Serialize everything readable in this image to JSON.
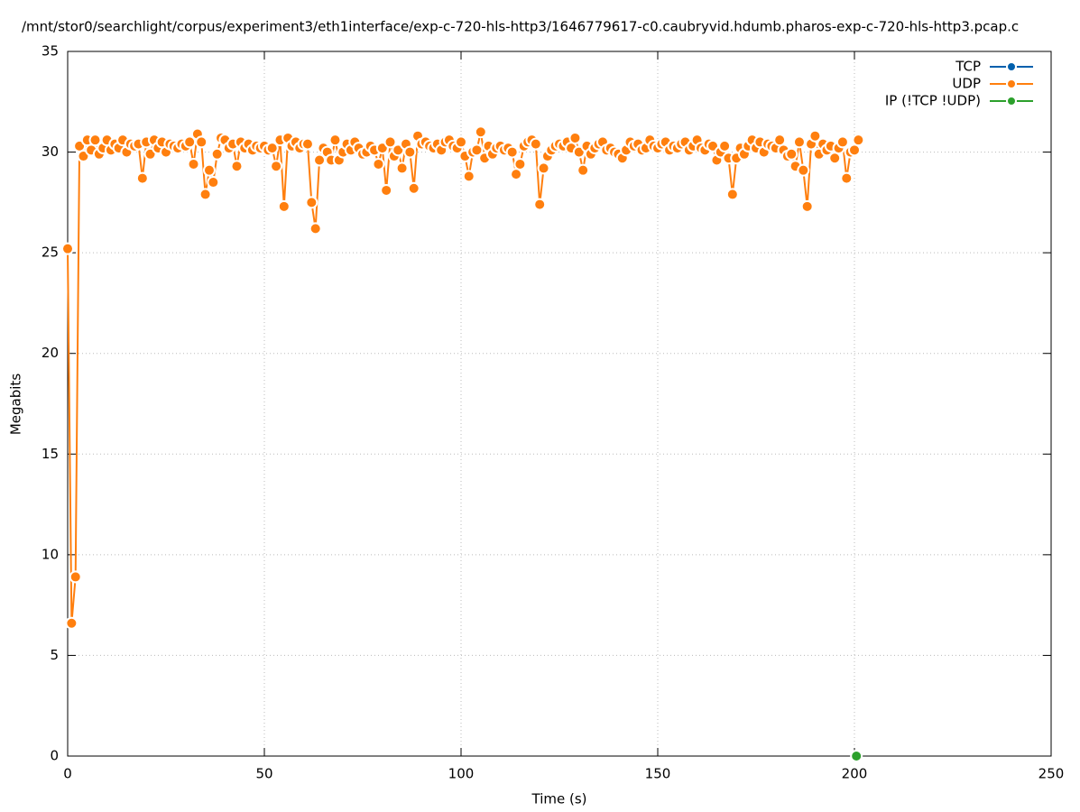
{
  "chart_data": {
    "type": "linespoints",
    "title": "/mnt/stor0/searchlight/corpus/experiment3/eth1interface/exp-c-720-hls-http3/1646779617-c0.caubryvid.hdumb.pharos-exp-c-720-hls-http3.pcap.c",
    "x_label": "Time (s)",
    "y_label": "Megabits",
    "xlim": [
      0,
      250
    ],
    "xticks": [
      0,
      50,
      100,
      150,
      200,
      250
    ],
    "ylim": [
      0,
      35
    ],
    "yticks": [
      0,
      5,
      10,
      15,
      20,
      25,
      30,
      35
    ],
    "grid": true,
    "legend": "top-right",
    "series": [
      {
        "name": "TCP",
        "color": "#0060ad",
        "x": [],
        "values": []
      },
      {
        "name": "UDP",
        "color": "#ff7f0e",
        "x": [
          0,
          1,
          2,
          3,
          4,
          5,
          6,
          7,
          8,
          9,
          10,
          11,
          12,
          13,
          14,
          15,
          16,
          17,
          18,
          19,
          20,
          21,
          22,
          23,
          24,
          25,
          26,
          27,
          28,
          29,
          30,
          31,
          32,
          33,
          34,
          35,
          36,
          37,
          38,
          39,
          40,
          41,
          42,
          43,
          44,
          45,
          46,
          47,
          48,
          49,
          50,
          51,
          52,
          53,
          54,
          55,
          56,
          57,
          58,
          59,
          60,
          61,
          62,
          63,
          64,
          65,
          66,
          67,
          68,
          69,
          70,
          71,
          72,
          73,
          74,
          75,
          76,
          77,
          78,
          79,
          80,
          81,
          82,
          83,
          84,
          85,
          86,
          87,
          88,
          89,
          90,
          91,
          92,
          93,
          94,
          95,
          96,
          97,
          98,
          99,
          100,
          101,
          102,
          103,
          104,
          105,
          106,
          107,
          108,
          109,
          110,
          111,
          112,
          113,
          114,
          115,
          116,
          117,
          118,
          119,
          120,
          121,
          122,
          123,
          124,
          125,
          126,
          127,
          128,
          129,
          130,
          131,
          132,
          133,
          134,
          135,
          136,
          137,
          138,
          139,
          140,
          141,
          142,
          143,
          144,
          145,
          146,
          147,
          148,
          149,
          150,
          151,
          152,
          153,
          154,
          155,
          156,
          157,
          158,
          159,
          160,
          161,
          162,
          163,
          164,
          165,
          166,
          167,
          168,
          169,
          170,
          171,
          172,
          173,
          174,
          175,
          176,
          177,
          178,
          179,
          180,
          181,
          182,
          183,
          184,
          185,
          186,
          187,
          188,
          189,
          190,
          191,
          192,
          193,
          194,
          195,
          196,
          197,
          198,
          199,
          200,
          201
        ],
        "values": [
          25.2,
          6.6,
          8.9,
          30.3,
          29.8,
          30.6,
          30.1,
          30.6,
          29.9,
          30.2,
          30.6,
          30.1,
          30.4,
          30.2,
          30.6,
          30.0,
          30.4,
          30.3,
          30.4,
          28.7,
          30.5,
          29.9,
          30.6,
          30.2,
          30.5,
          30.0,
          30.4,
          30.3,
          30.2,
          30.4,
          30.3,
          30.5,
          29.4,
          30.9,
          30.5,
          27.9,
          29.1,
          28.5,
          29.9,
          30.7,
          30.6,
          30.2,
          30.4,
          29.3,
          30.5,
          30.2,
          30.4,
          30.1,
          30.3,
          30.2,
          30.3,
          30.1,
          30.2,
          29.3,
          30.6,
          27.3,
          30.7,
          30.3,
          30.5,
          30.2,
          30.4,
          30.4,
          27.5,
          26.2,
          29.6,
          30.2,
          30.0,
          29.6,
          30.6,
          29.6,
          30.0,
          30.4,
          30.1,
          30.5,
          30.2,
          29.9,
          30.0,
          30.3,
          30.1,
          29.4,
          30.2,
          28.1,
          30.5,
          29.8,
          30.1,
          29.2,
          30.4,
          30.0,
          28.2,
          30.8,
          30.4,
          30.5,
          30.3,
          30.2,
          30.4,
          30.1,
          30.5,
          30.6,
          30.3,
          30.2,
          30.5,
          29.8,
          28.8,
          30.0,
          30.1,
          31.0,
          29.7,
          30.3,
          29.9,
          30.2,
          30.3,
          30.1,
          30.2,
          30.0,
          28.9,
          29.4,
          30.3,
          30.5,
          30.6,
          30.4,
          27.4,
          29.2,
          29.8,
          30.1,
          30.3,
          30.4,
          30.3,
          30.5,
          30.2,
          30.7,
          30.0,
          29.1,
          30.3,
          29.9,
          30.2,
          30.4,
          30.5,
          30.1,
          30.2,
          30.0,
          29.9,
          29.7,
          30.1,
          30.5,
          30.3,
          30.4,
          30.1,
          30.2,
          30.6,
          30.3,
          30.2,
          30.4,
          30.5,
          30.1,
          30.3,
          30.2,
          30.4,
          30.5,
          30.1,
          30.3,
          30.6,
          30.2,
          30.1,
          30.4,
          30.3,
          29.6,
          30.0,
          30.3,
          29.7,
          27.9,
          29.7,
          30.2,
          29.9,
          30.3,
          30.6,
          30.2,
          30.5,
          30.0,
          30.4,
          30.3,
          30.2,
          30.6,
          30.1,
          29.8,
          29.9,
          29.3,
          30.5,
          29.1,
          27.3,
          30.4,
          30.8,
          29.9,
          30.4,
          30.1,
          30.3,
          29.7,
          30.2,
          30.5,
          28.7,
          30.0,
          30.1,
          30.6
        ]
      },
      {
        "name": "IP (!TCP  !UDP)",
        "color": "#2ca02c",
        "x": [
          200.5
        ],
        "values": [
          0
        ]
      }
    ]
  }
}
